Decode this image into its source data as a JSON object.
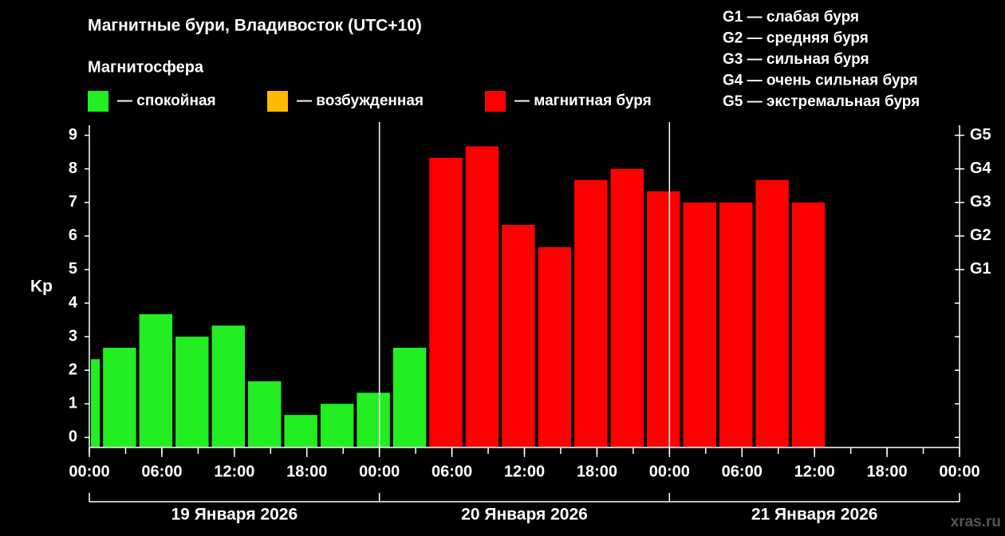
{
  "chart_data": {
    "type": "bar",
    "title": "Магнитные бури, Владивосток (UTC+10)",
    "legend_title": "Магнитосфера",
    "legend": [
      {
        "label": "— спокойная",
        "color": "#22ee22"
      },
      {
        "label": "— возбужденная",
        "color": "#ffbb00"
      },
      {
        "label": "— магнитная буря",
        "color": "#ff0000"
      }
    ],
    "scale_legend": [
      "G1 — слабая буря",
      "G2 — средняя буря",
      "G3 — сильная буря",
      "G4 — очень сильная буря",
      "G5 — экстремальная буря"
    ],
    "y_label": "Kp",
    "categories": [
      null,
      null,
      null,
      null,
      null,
      null,
      null,
      null,
      null,
      null,
      null,
      null,
      null,
      null,
      null,
      null,
      null,
      null,
      null,
      null,
      null
    ],
    "values": [
      2.33,
      2.67,
      3.67,
      3.0,
      3.33,
      1.67,
      0.67,
      1.0,
      1.33,
      2.67,
      8.33,
      8.67,
      6.33,
      5.67,
      7.67,
      8.0,
      7.33,
      7.0,
      7.0,
      7.67,
      7.0
    ],
    "colors": [
      "#22ee22",
      "#22ee22",
      "#22ee22",
      "#22ee22",
      "#22ee22",
      "#22ee22",
      "#22ee22",
      "#22ee22",
      "#22ee22",
      "#22ee22",
      "#ff0000",
      "#ff0000",
      "#ff0000",
      "#ff0000",
      "#ff0000",
      "#ff0000",
      "#ff0000",
      "#ff0000",
      "#ff0000",
      "#ff0000",
      "#ff0000"
    ],
    "ylim": [
      -0.3,
      9.3
    ],
    "yticks": [
      0,
      1,
      2,
      3,
      4,
      5,
      6,
      7,
      8,
      9
    ],
    "y2ticks": [
      {
        "value": 5,
        "label": "G1"
      },
      {
        "value": 6,
        "label": "G2"
      },
      {
        "value": 7,
        "label": "G3"
      },
      {
        "value": 8,
        "label": "G4"
      },
      {
        "value": 9,
        "label": "G5"
      }
    ],
    "xlim": [
      0,
      72
    ],
    "xticks": [
      {
        "value": 0,
        "label": "00:00"
      },
      {
        "value": 6,
        "label": "06:00"
      },
      {
        "value": 12,
        "label": "12:00"
      },
      {
        "value": 18,
        "label": "18:00"
      },
      {
        "value": 24,
        "label": "00:00"
      },
      {
        "value": 30,
        "label": "06:00"
      },
      {
        "value": 36,
        "label": "12:00"
      },
      {
        "value": 42,
        "label": "18:00"
      },
      {
        "value": 48,
        "label": "00:00"
      },
      {
        "value": 54,
        "label": "06:00"
      },
      {
        "value": 60,
        "label": "12:00"
      },
      {
        "value": 66,
        "label": "18:00"
      },
      {
        "value": 72,
        "label": "00:00"
      }
    ],
    "days": [
      "19 Января 2026",
      "20 Января 2026",
      "21 Января 2026"
    ],
    "watermark": "xras.ru"
  }
}
